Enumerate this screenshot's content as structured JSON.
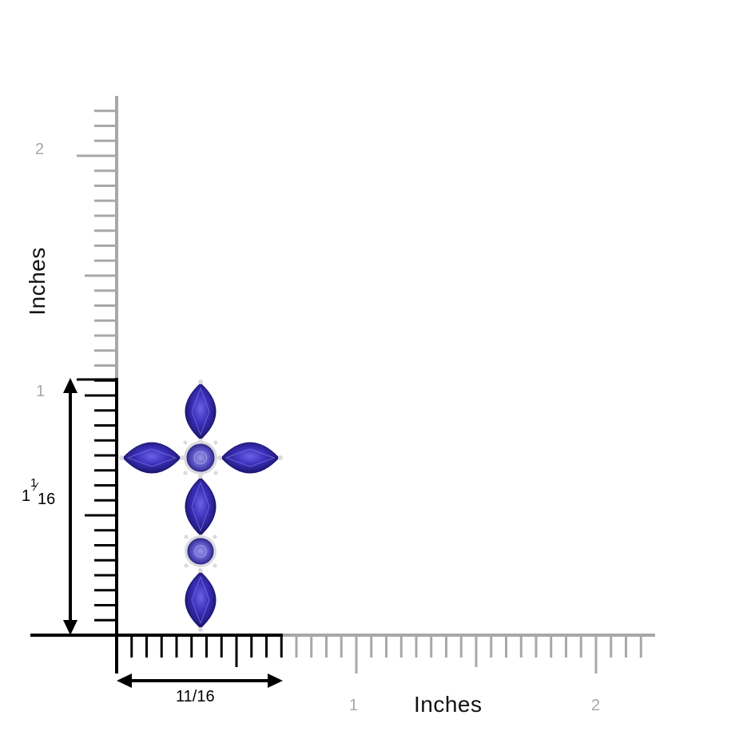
{
  "x_axis": {
    "title": "Inches",
    "tick_labels": [
      "1",
      "2"
    ]
  },
  "y_axis": {
    "title": "Inches",
    "tick_labels": [
      "1",
      "2"
    ]
  },
  "dimensions": {
    "width": {
      "label": "11/16"
    },
    "height": {
      "whole": "1",
      "numerator": "1",
      "denominator": "16"
    }
  },
  "product": {
    "type": "cross pendant",
    "marquise_stones": 5,
    "round_stones": 2,
    "stone_color": "#3a2fb8",
    "metal_color": "#d9d9e0"
  },
  "colors": {
    "ruler": "#a8a8a8",
    "measure": "#000000"
  }
}
